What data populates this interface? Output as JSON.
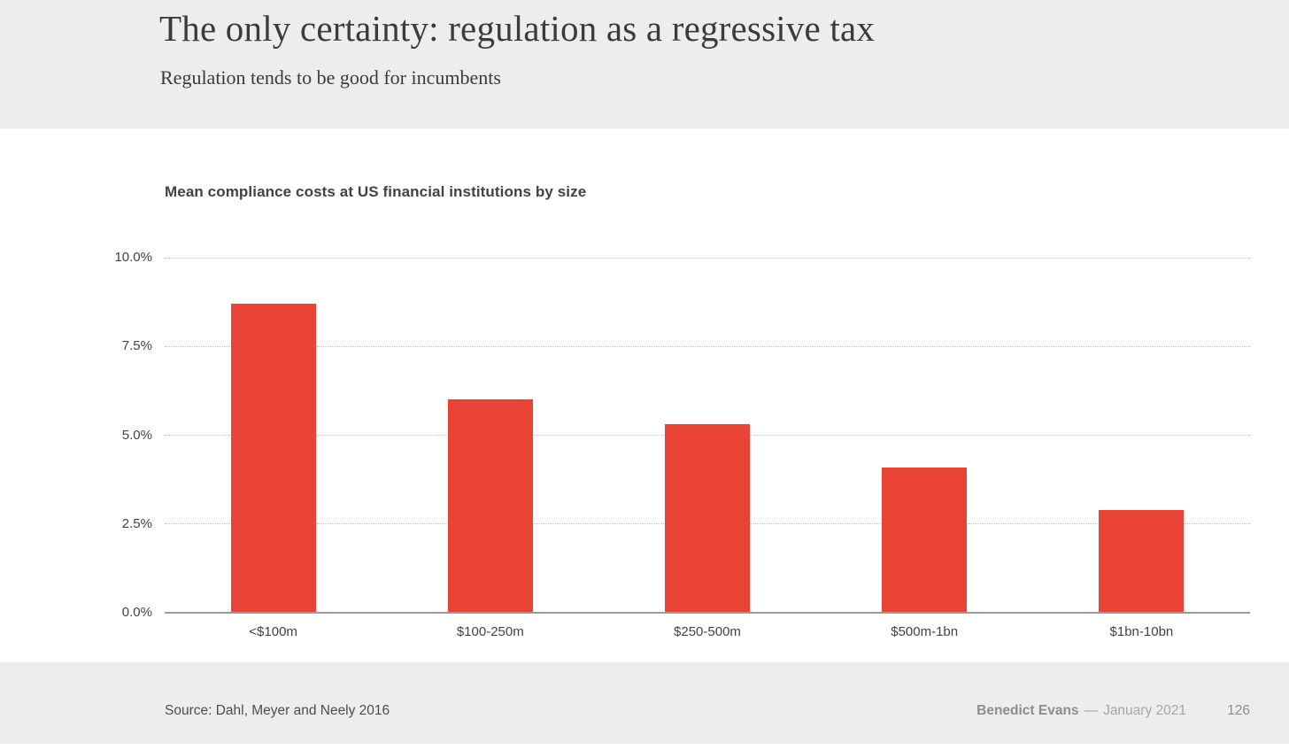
{
  "header": {
    "title": "The only certainty: regulation as a regressive tax",
    "subtitle": "Regulation tends to be good for incumbents"
  },
  "chart_data": {
    "type": "bar",
    "title": "Mean compliance costs at US financial institutions by size",
    "categories": [
      "<$100m",
      "$100-250m",
      "$250-500m",
      "$500m-1bn",
      "$1bn-10bn"
    ],
    "values": [
      8.7,
      6.0,
      5.3,
      4.1,
      2.9
    ],
    "unit": "%",
    "xlabel": "",
    "ylabel": "",
    "ylim": [
      0,
      10
    ],
    "yticks": [
      0,
      2.5,
      5,
      7.5,
      10
    ],
    "ytick_labels": [
      "0.0%",
      "2.5%",
      "5.0%",
      "7.5%",
      "10.0%"
    ],
    "bar_color": "#e84335",
    "grid": "horizontal-dotted",
    "legend": "none"
  },
  "footer": {
    "source": "Source: Dahl, Meyer and Neely 2016",
    "author": "Benedict Evans",
    "separator": "—",
    "date": "January 2021",
    "page_number": "126"
  }
}
